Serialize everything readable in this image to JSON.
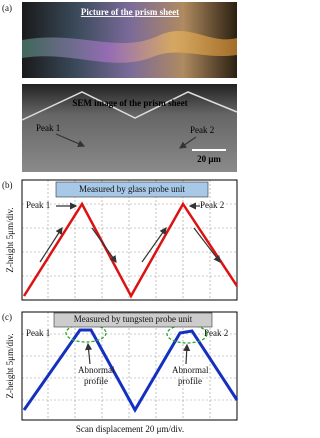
{
  "panel_a": {
    "label": "(a)",
    "photo_caption": "Picture of the prism sheet",
    "sem_caption": "SEM image of the prism sheet",
    "peak1": "Peak 1",
    "peak2": "Peak 2",
    "scale_bar": "20 μm"
  },
  "panel_b": {
    "label": "(b)",
    "title": "Measured by glass probe unit",
    "peak1": "Peak 1",
    "peak2": "Peak 2",
    "y_label": "Z-height 5μm/div."
  },
  "panel_c": {
    "label": "(c)",
    "title": "Measured by tungsten probe unit",
    "peak1": "Peak 1",
    "peak2": "Peak 2",
    "abnormal": [
      "Abnormal",
      "profile"
    ],
    "y_label": "Z-height 5μm/div.",
    "x_label": "Scan displacement 20 μm/div."
  }
}
